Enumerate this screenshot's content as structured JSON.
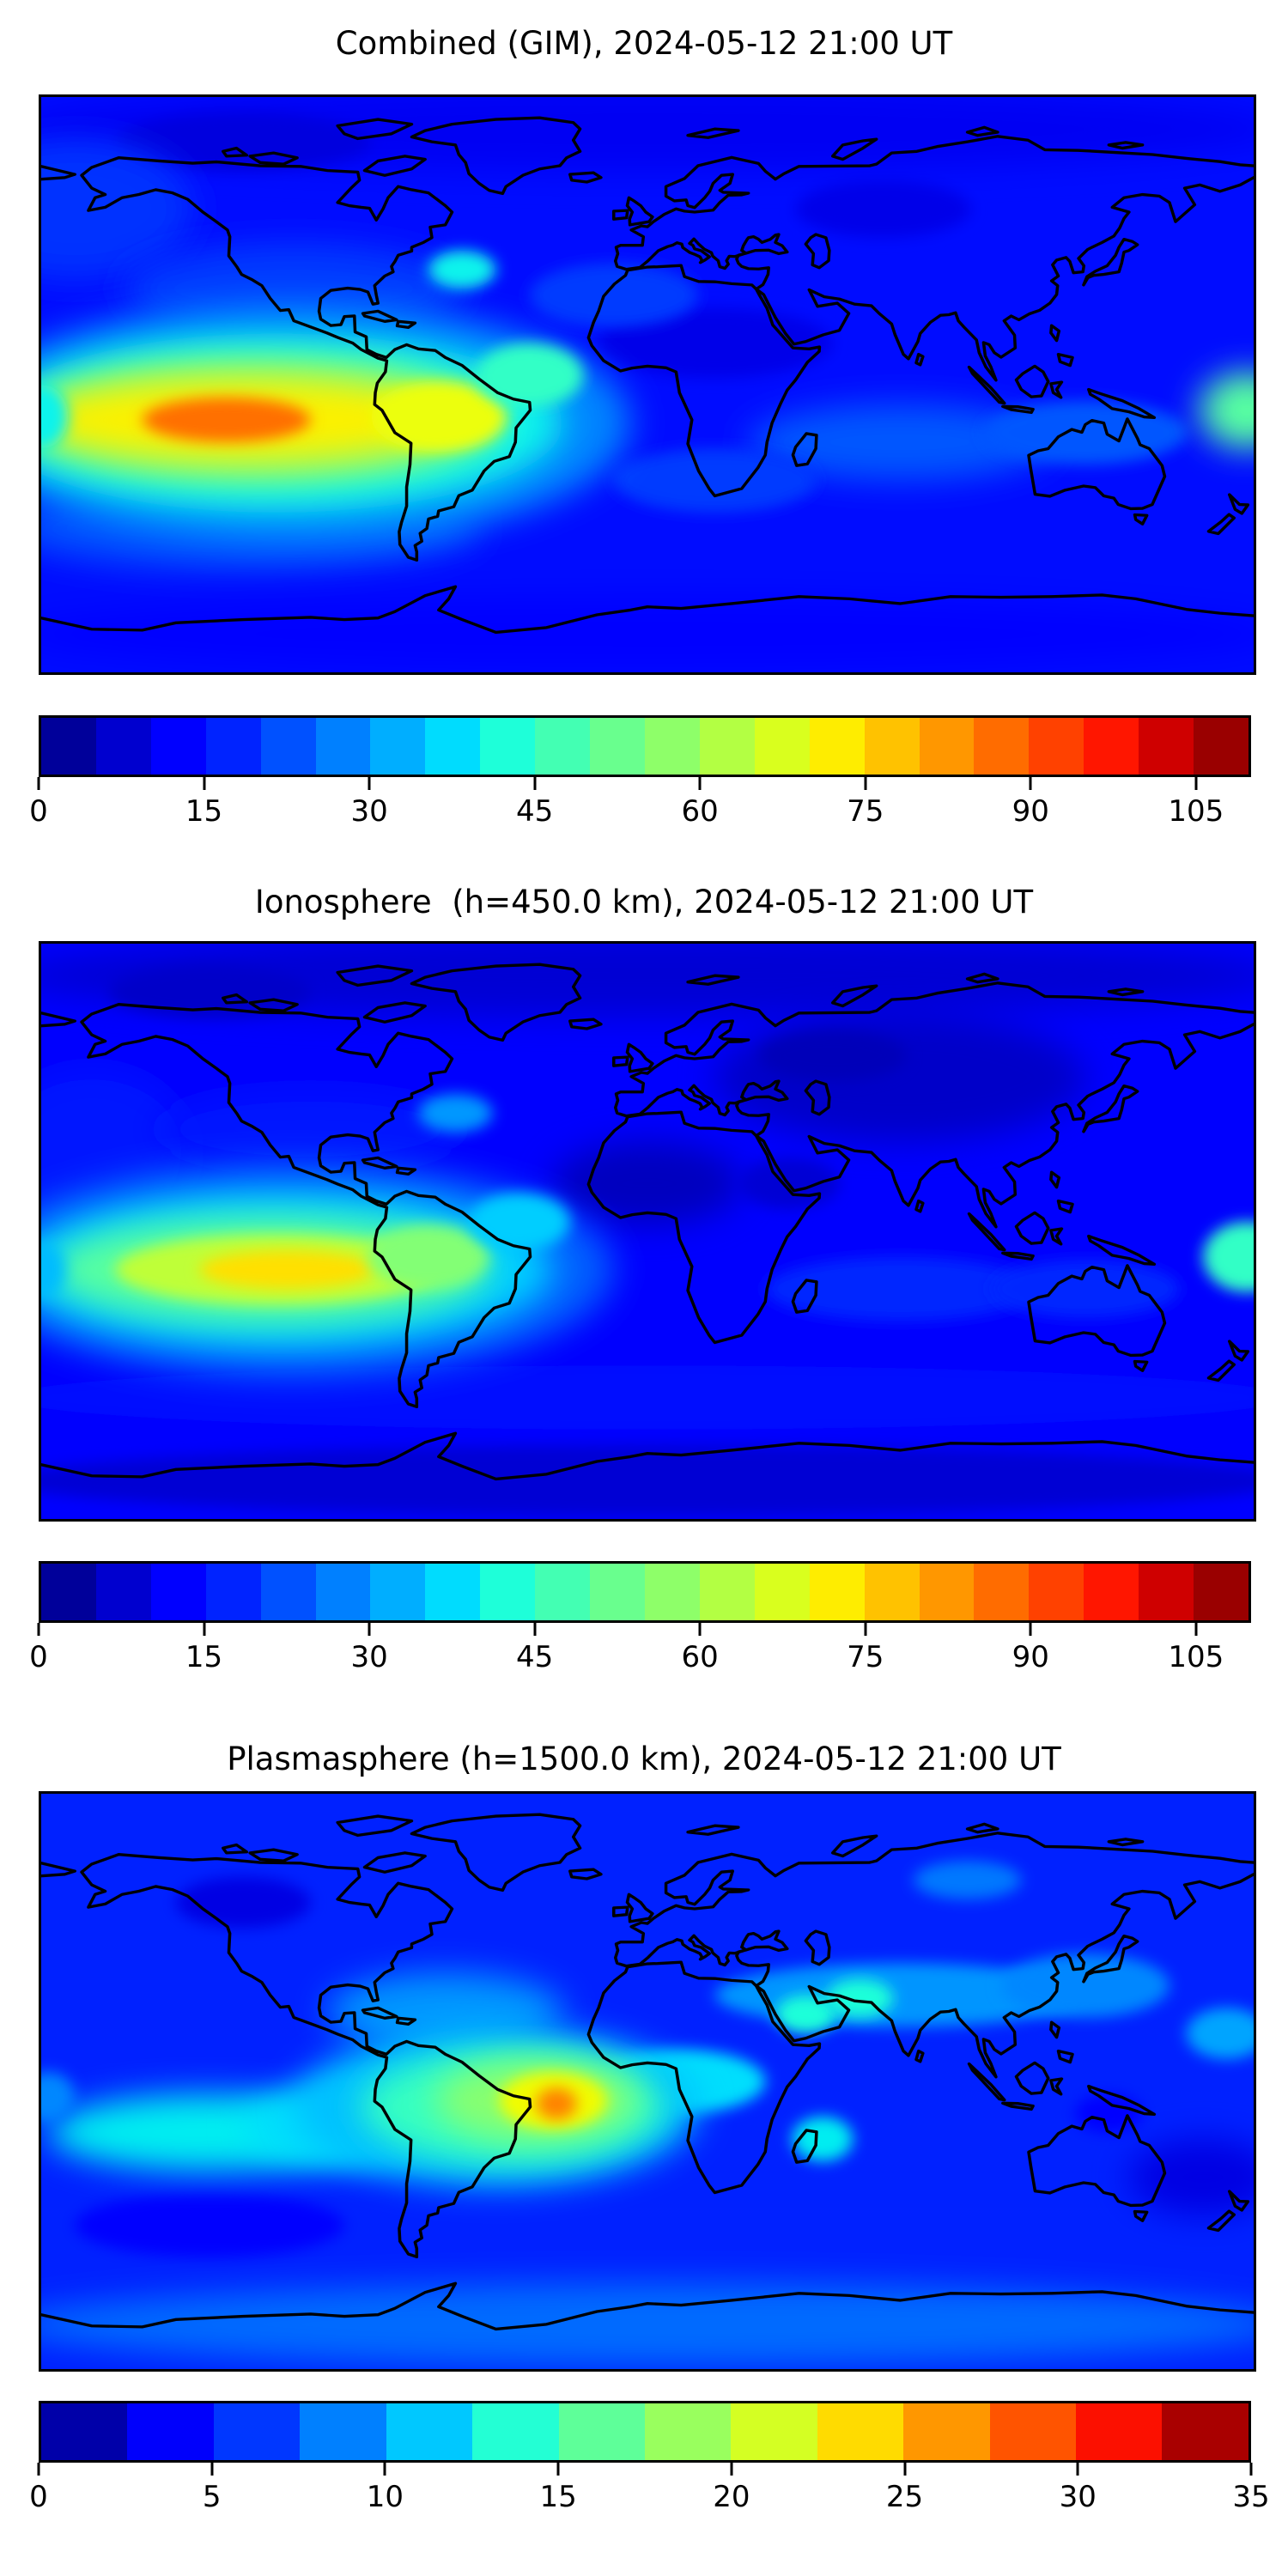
{
  "panels": [
    {
      "title": "Combined (GIM), 2024-05-12 21:00 UT"
    },
    {
      "title": "Ionosphere  (h=450.0 km), 2024-05-12 21:00 UT"
    },
    {
      "title": "Plasmasphere (h=1500.0 km), 2024-05-12 21:00 UT"
    }
  ],
  "chart_data": [
    {
      "type": "heatmap",
      "title": "Combined (GIM), 2024-05-12 21:00 UT",
      "map": "world equirectangular, lon -180..180, lat -90..90, black coastlines, no axis ticks",
      "colormap": "jet",
      "value_range": [
        0,
        110
      ],
      "contour_step": 5,
      "colorbar_ticks": [
        0,
        15,
        30,
        45,
        60,
        75,
        90,
        105
      ],
      "colorbar_position": "bottom",
      "base_value": 15,
      "features": [
        {
          "label": "north-polar-low",
          "lon": 0,
          "lat": 80,
          "rx": 190,
          "ry": 13,
          "value": 11
        },
        {
          "label": "arctic-canada-low",
          "lon": -120,
          "lat": 76,
          "rx": 38,
          "ry": 9,
          "value": 9
        },
        {
          "label": "siberia-low",
          "lon": 70,
          "lat": 55,
          "rx": 26,
          "ry": 9,
          "value": 10
        },
        {
          "label": "africa-arabia-low",
          "lon": 20,
          "lat": 13,
          "rx": 35,
          "ry": 11,
          "value": 10
        },
        {
          "label": "north-pacific-mid",
          "lon": -170,
          "lat": 55,
          "rx": 35,
          "ry": 22,
          "value": 19
        },
        {
          "label": "north-america-mid",
          "lon": -105,
          "lat": 30,
          "rx": 50,
          "ry": 14,
          "value": 20
        },
        {
          "label": "canaries-mid",
          "lon": -10,
          "lat": 28,
          "rx": 25,
          "ry": 10,
          "value": 20
        },
        {
          "label": "indian-ocean-mid",
          "lon": 75,
          "lat": -18,
          "rx": 45,
          "ry": 12,
          "value": 23
        },
        {
          "label": "coral-sea-mid",
          "lon": 130,
          "lat": -15,
          "rx": 30,
          "ry": 10,
          "value": 23
        },
        {
          "label": "south-africa-mid",
          "lon": 20,
          "lat": -30,
          "rx": 30,
          "ry": 10,
          "value": 20
        },
        {
          "label": "south-pacific-band",
          "lon": -120,
          "lat": -45,
          "rx": 70,
          "ry": 13,
          "value": 22
        },
        {
          "label": "antarctica-band",
          "lon": 0,
          "lat": -78,
          "rx": 190,
          "ry": 12,
          "value": 13
        },
        {
          "label": "anomaly-halo",
          "lon": -105,
          "lat": -12,
          "rx": 100,
          "ry": 38,
          "value": 28
        },
        {
          "label": "anomaly-cyan-ring",
          "lon": -110,
          "lat": -12,
          "rx": 85,
          "ry": 28,
          "value": 40
        },
        {
          "label": "anomaly-green-ring",
          "lon": -115,
          "lat": -11,
          "rx": 72,
          "ry": 20,
          "value": 55
        },
        {
          "label": "anomaly-yellow-ring",
          "lon": -120,
          "lat": -11,
          "rx": 62,
          "ry": 13,
          "value": 72
        },
        {
          "label": "south-america-yellow-lobe",
          "lon": -62,
          "lat": -10,
          "rx": 20,
          "ry": 11,
          "value": 70
        },
        {
          "label": "equatorial-atlantic-tongue",
          "lon": -35,
          "lat": 3,
          "rx": 16,
          "ry": 10,
          "value": 45
        },
        {
          "label": "anomaly-orange-core-east-pacific",
          "lon": -125,
          "lat": -11,
          "rx": 25,
          "ry": 7,
          "value": 87
        },
        {
          "label": "us-east-coast-spot",
          "lon": -55,
          "lat": 36,
          "rx": 10,
          "ry": 6,
          "value": 40
        },
        {
          "label": "west-pacific-edge-spot",
          "lon": 178,
          "lat": -8,
          "rx": 14,
          "ry": 12,
          "value": 50
        },
        {
          "label": "dateline-wrap-spot",
          "lon": -180,
          "lat": -10,
          "rx": 8,
          "ry": 10,
          "value": 40
        }
      ]
    },
    {
      "type": "heatmap",
      "title": "Ionosphere  (h=450.0 km), 2024-05-12 21:00 UT",
      "map": "world equirectangular, lon -180..180, lat -90..90, black coastlines, no axis ticks",
      "colormap": "jet",
      "value_range": [
        0,
        110
      ],
      "contour_step": 5,
      "colorbar_ticks": [
        0,
        15,
        30,
        45,
        60,
        75,
        90,
        105
      ],
      "colorbar_position": "bottom",
      "base_value": 12,
      "features": [
        {
          "label": "north-polar-low",
          "lon": 0,
          "lat": 80,
          "rx": 190,
          "ry": 13,
          "value": 8
        },
        {
          "label": "arctic-canada-low",
          "lon": -130,
          "lat": 75,
          "rx": 30,
          "ry": 8,
          "value": 7
        },
        {
          "label": "asia-night-low",
          "lon": 75,
          "lat": 48,
          "rx": 55,
          "ry": 20,
          "value": 7
        },
        {
          "label": "kazakhstan-deep-low",
          "lon": 55,
          "lat": 55,
          "rx": 22,
          "ry": 8,
          "value": 5.5
        },
        {
          "label": "west-africa-low",
          "lon": 0,
          "lat": 15,
          "rx": 28,
          "ry": 13,
          "value": 6
        },
        {
          "label": "arabia-low",
          "lon": 42,
          "lat": 15,
          "rx": 15,
          "ry": 8,
          "value": 8
        },
        {
          "label": "north-pacific-mid",
          "lon": -165,
          "lat": 25,
          "rx": 30,
          "ry": 26,
          "value": 16
        },
        {
          "label": "north-america-mid",
          "lon": -100,
          "lat": 32,
          "rx": 45,
          "ry": 12,
          "value": 16
        },
        {
          "label": "indian-ocean-mid",
          "lon": 75,
          "lat": -18,
          "rx": 40,
          "ry": 10,
          "value": 18
        },
        {
          "label": "coral-sea-mid",
          "lon": 130,
          "lat": -18,
          "rx": 28,
          "ry": 9,
          "value": 18
        },
        {
          "label": "southern-ocean-band",
          "lon": 0,
          "lat": -52,
          "rx": 190,
          "ry": 10,
          "value": 15
        },
        {
          "label": "antarctica-low-band",
          "lon": 0,
          "lat": -78,
          "rx": 190,
          "ry": 11,
          "value": 8
        },
        {
          "label": "anomaly-halo",
          "lon": -105,
          "lat": -12,
          "rx": 95,
          "ry": 34,
          "value": 24
        },
        {
          "label": "anomaly-cyan-ring",
          "lon": -108,
          "lat": -12,
          "rx": 80,
          "ry": 25,
          "value": 36
        },
        {
          "label": "anomaly-green-ring",
          "lon": -112,
          "lat": -12,
          "rx": 65,
          "ry": 17,
          "value": 50
        },
        {
          "label": "anomaly-yellow-ring",
          "lon": -110,
          "lat": -12,
          "rx": 48,
          "ry": 11,
          "value": 64
        },
        {
          "label": "anomaly-gold-core-east-pacific",
          "lon": -107,
          "lat": -12,
          "rx": 26,
          "ry": 6,
          "value": 74
        },
        {
          "label": "south-america-green-lobe",
          "lon": -65,
          "lat": -8,
          "rx": 18,
          "ry": 10,
          "value": 56
        },
        {
          "label": "equatorial-atlantic-tongue",
          "lon": -38,
          "lat": 3,
          "rx": 15,
          "ry": 9,
          "value": 36
        },
        {
          "label": "us-east-coast-spot",
          "lon": -57,
          "lat": 37,
          "rx": 11,
          "ry": 6,
          "value": 30
        },
        {
          "label": "west-pacific-edge-spot",
          "lon": 178,
          "lat": -8,
          "rx": 13,
          "ry": 11,
          "value": 45
        },
        {
          "label": "dateline-wrap-spot",
          "lon": -180,
          "lat": -12,
          "rx": 7,
          "ry": 9,
          "value": 34
        }
      ]
    },
    {
      "type": "heatmap",
      "title": "Plasmasphere (h=1500.0 km), 2024-05-12 21:00 UT",
      "map": "world equirectangular, lon -180..180, lat -90..90, black coastlines, no axis ticks",
      "colormap": "jet",
      "value_range": [
        0,
        35
      ],
      "contour_step": 2.5,
      "colorbar_ticks": [
        0,
        5,
        10,
        15,
        20,
        25,
        30,
        35
      ],
      "colorbar_position": "bottom",
      "base_value": 5.5,
      "features": [
        {
          "label": "antarctic-band",
          "lon": 0,
          "lat": -76,
          "rx": 190,
          "ry": 13,
          "value": 8
        },
        {
          "label": "siberia-light-spot",
          "lon": 95,
          "lat": 63,
          "rx": 16,
          "ry": 6,
          "value": 8.5
        },
        {
          "label": "central-asia-band",
          "lon": 75,
          "lat": 27,
          "rx": 55,
          "ry": 10,
          "value": 9.5
        },
        {
          "label": "east-asia-band",
          "lon": 130,
          "lat": 30,
          "rx": 25,
          "ry": 10,
          "value": 9
        },
        {
          "label": "north-atlantic-band",
          "lon": -60,
          "lat": 22,
          "rx": 35,
          "ry": 12,
          "value": 9.5
        },
        {
          "label": "northwest-pacific-spot",
          "lon": 172,
          "lat": 15,
          "rx": 12,
          "ry": 8,
          "value": 10
        },
        {
          "label": "canada-dark-low",
          "lon": -120,
          "lat": 56,
          "rx": 20,
          "ry": 8,
          "value": 3
        },
        {
          "label": "tasman-dark-low",
          "lon": 165,
          "lat": -30,
          "rx": 22,
          "ry": 12,
          "value": 3
        },
        {
          "label": "indonesia-dark-low",
          "lon": 137,
          "lat": -10,
          "rx": 10,
          "ry": 6,
          "value": 4
        },
        {
          "label": "south-pacific-dark-low",
          "lon": -130,
          "lat": -45,
          "rx": 40,
          "ry": 10,
          "value": 4.5
        },
        {
          "label": "south-pacific-cyan-band",
          "lon": -130,
          "lat": -16,
          "rx": 48,
          "ry": 12,
          "value": 12.5
        },
        {
          "label": "east-pacific-cyan",
          "lon": -90,
          "lat": -14,
          "rx": 30,
          "ry": 12,
          "value": 12
        },
        {
          "label": "central-africa-cyan",
          "lon": 10,
          "lat": 0,
          "rx": 25,
          "ry": 10,
          "value": 12
        },
        {
          "label": "arabia-spot",
          "lon": 47,
          "lat": 21,
          "rx": 9,
          "ry": 6,
          "value": 13.5
        },
        {
          "label": "india-spot",
          "lon": 63,
          "lat": 26,
          "rx": 10,
          "ry": 6,
          "value": 13.5
        },
        {
          "label": "madagascar-spot",
          "lon": 52,
          "lat": -18,
          "rx": 9,
          "ry": 7,
          "value": 12.5
        },
        {
          "label": "atlantic-halo",
          "lon": -45,
          "lat": -8,
          "rx": 60,
          "ry": 25,
          "value": 11
        },
        {
          "label": "atlantic-cyan-ring",
          "lon": -40,
          "lat": -8,
          "rx": 45,
          "ry": 18,
          "value": 14.5
        },
        {
          "label": "atlantic-green-ring",
          "lon": -33,
          "lat": -6,
          "rx": 30,
          "ry": 13,
          "value": 18
        },
        {
          "label": "atlantic-yellow-ring",
          "lon": -28,
          "lat": -6,
          "rx": 16,
          "ry": 9,
          "value": 22.5
        },
        {
          "label": "atlantic-orange-core",
          "lon": -27,
          "lat": -7,
          "rx": 6,
          "ry": 5,
          "value": 27
        },
        {
          "label": "dateline-wrap-spot",
          "lon": -178,
          "lat": -5,
          "rx": 8,
          "ry": 8,
          "value": 9
        }
      ]
    }
  ],
  "layout_note_values_visible_only": "three stacked map panels each with title and horizontal jet colorbar"
}
